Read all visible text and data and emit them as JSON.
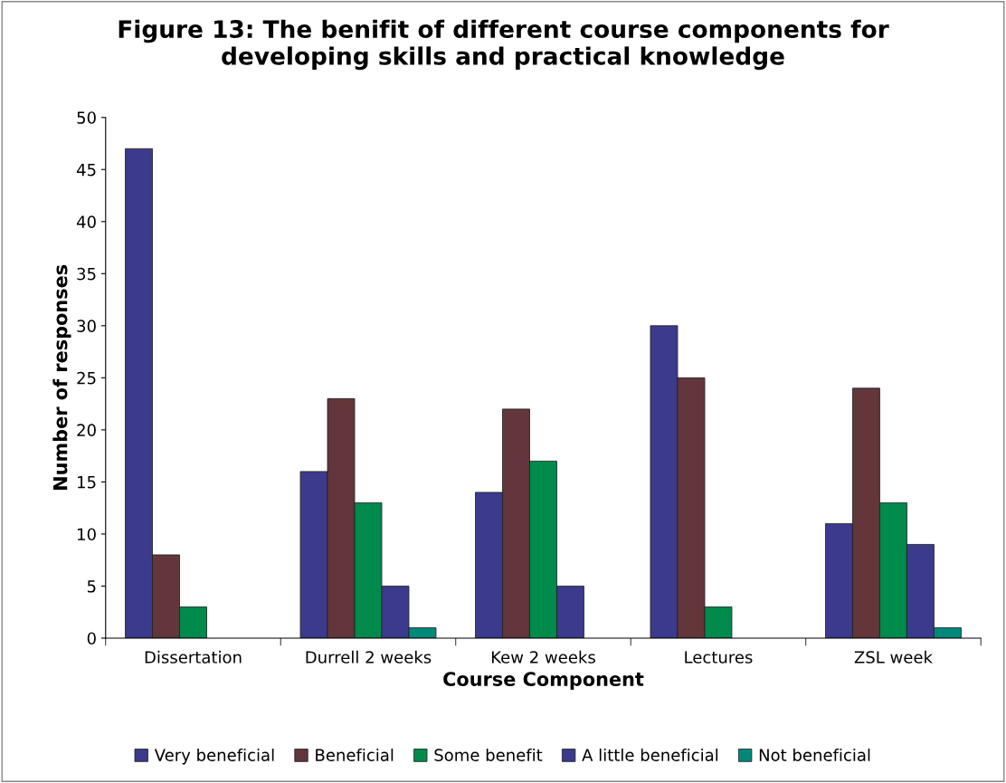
{
  "chart_data": {
    "type": "bar",
    "title": "Figure 13: The benifit of different course components for\ndeveloping skills and practical knowledge",
    "xlabel": "Course Component",
    "ylabel": "Number of responses",
    "categories": [
      "Dissertation",
      "Durrell 2 weeks",
      "Kew 2 weeks",
      "Lectures",
      "ZSL week"
    ],
    "series": [
      {
        "name": "Very beneficial",
        "color": "#3b3a8c",
        "values": [
          47,
          16,
          14,
          30,
          11
        ]
      },
      {
        "name": "Beneficial",
        "color": "#62363a",
        "values": [
          8,
          23,
          22,
          25,
          24
        ]
      },
      {
        "name": "Some benefit",
        "color": "#008a4b",
        "values": [
          3,
          13,
          17,
          3,
          13
        ]
      },
      {
        "name": "A little beneficial",
        "color": "#3b3a8c",
        "values": [
          null,
          5,
          5,
          null,
          9
        ]
      },
      {
        "name": "Not beneficial",
        "color": "#00897a",
        "values": [
          null,
          1,
          null,
          null,
          1
        ]
      }
    ],
    "ylim": [
      0,
      50
    ],
    "yticks": [
      0,
      5,
      10,
      15,
      20,
      25,
      30,
      35,
      40,
      45,
      50
    ],
    "grid": false,
    "legend": "bottom"
  }
}
